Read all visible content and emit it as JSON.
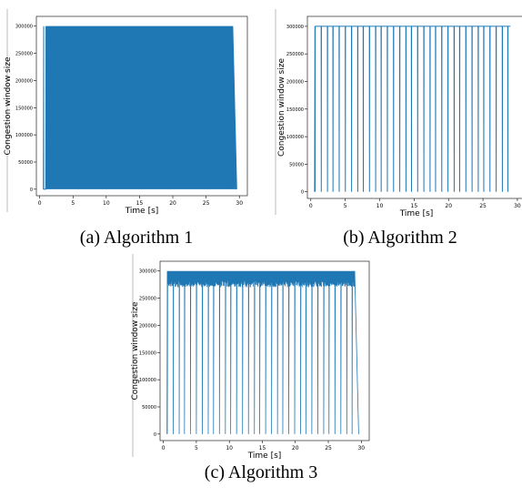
{
  "captions": [
    "(a) Algorithm 1",
    "(b) Algorithm 2",
    "(c) Algorithm 3"
  ],
  "colors": {
    "series": "#1f77b4"
  },
  "chart_data": [
    {
      "type": "line",
      "title": "",
      "xlabel": "Time [s]",
      "ylabel": "Congestion window size",
      "xlim": [
        -0.5,
        31.2
      ],
      "ylim": [
        -12000,
        318000
      ],
      "xticks": [
        0,
        5,
        10,
        15,
        20,
        25,
        30
      ],
      "yticks": [
        0,
        50000,
        100000,
        150000,
        200000,
        250000,
        300000
      ],
      "grid": false,
      "pattern": "filled",
      "drops": [
        0.6,
        0.9
      ],
      "start": 0.6,
      "end": 29.0,
      "tail_end": 29.6,
      "cap": 300000,
      "floor": 0
    },
    {
      "type": "line",
      "title": "",
      "xlabel": "Time [s]",
      "ylabel": "Congestion window size",
      "xlim": [
        -0.5,
        31.2
      ],
      "ylim": [
        -12000,
        318000
      ],
      "xticks": [
        0,
        5,
        10,
        15,
        20,
        25,
        30
      ],
      "yticks": [
        0,
        50000,
        100000,
        150000,
        200000,
        250000,
        300000
      ],
      "grid": false,
      "pattern": "spikes",
      "drops": [
        0.6,
        1.5,
        2.4,
        3.2,
        4.1,
        5.0,
        5.9,
        6.8,
        7.6,
        8.5,
        9.4,
        10.2,
        11.1,
        12.0,
        12.9,
        13.8,
        14.6,
        15.5,
        16.4,
        17.3,
        18.1,
        19.0,
        19.9,
        20.8,
        21.6,
        22.5,
        23.4,
        24.3,
        25.1,
        26.0,
        26.9,
        27.8,
        28.6
      ],
      "start": 0.6,
      "end": 29.0,
      "cap": 300000,
      "floor": 0
    },
    {
      "type": "line",
      "title": "",
      "xlabel": "Time [s]",
      "ylabel": "Congestion window size",
      "xlim": [
        -0.5,
        31.2
      ],
      "ylim": [
        -12000,
        318000
      ],
      "xticks": [
        0,
        5,
        10,
        15,
        20,
        25,
        30
      ],
      "yticks": [
        0,
        50000,
        100000,
        150000,
        200000,
        250000,
        300000
      ],
      "grid": false,
      "pattern": "spikes_noisy",
      "drops": [
        0.6,
        1.5,
        2.4,
        3.2,
        4.1,
        5.0,
        5.9,
        6.8,
        7.6,
        8.5,
        9.4,
        10.2,
        11.1,
        12.0,
        12.9,
        13.8,
        14.6,
        15.5,
        16.4,
        17.3,
        18.1,
        19.0,
        19.9,
        20.8,
        21.6,
        22.5,
        23.4,
        24.3,
        25.1,
        26.0,
        26.9,
        27.8,
        28.6
      ],
      "start": 0.6,
      "end": 29.0,
      "tail_end": 29.6,
      "cap": 300000,
      "band_low": 270000,
      "floor": 0
    }
  ]
}
